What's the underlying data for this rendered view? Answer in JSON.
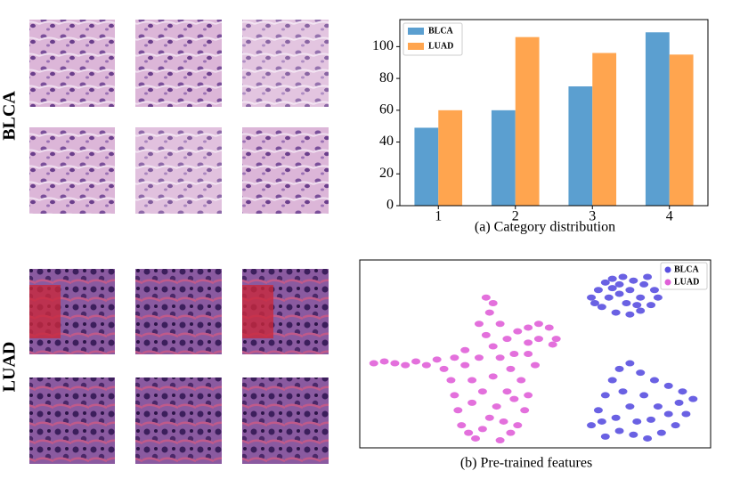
{
  "row_labels": [
    "BLCA",
    "LUAD"
  ],
  "chart_data": [
    {
      "type": "bar",
      "caption": "(a) Category distribution",
      "categories": [
        "1",
        "2",
        "3",
        "4"
      ],
      "series": [
        {
          "name": "BLCA",
          "color": "#5b9fd0",
          "values": [
            49,
            60,
            75,
            109
          ]
        },
        {
          "name": "LUAD",
          "color": "#ffa54f",
          "values": [
            60,
            106,
            96,
            95
          ]
        }
      ],
      "ylim": [
        0,
        117
      ],
      "yticks": [
        0,
        20,
        40,
        60,
        80,
        100
      ],
      "legend": "upper-left"
    },
    {
      "type": "scatter",
      "caption": "(b) Pre-trained features",
      "xlim": [
        0,
        100
      ],
      "ylim": [
        0,
        100
      ],
      "legend": "upper-right",
      "series": [
        {
          "name": "BLCA",
          "color": "#5a50e0",
          "x": [
            66,
            68,
            70,
            72,
            75,
            78,
            81,
            84,
            85,
            83,
            80,
            77,
            73,
            69,
            71,
            74,
            77,
            80,
            76,
            72,
            79,
            67,
            82,
            74,
            66,
            68,
            70,
            72,
            74,
            77,
            80,
            84,
            88,
            92,
            95,
            93,
            90,
            86,
            82,
            78,
            74,
            70,
            73,
            77,
            81,
            85,
            88,
            79,
            83,
            75,
            69,
            91
          ],
          "y": [
            80,
            84,
            88,
            90,
            91,
            89,
            87,
            84,
            80,
            76,
            73,
            71,
            72,
            75,
            80,
            82,
            84,
            80,
            77,
            85,
            76,
            77,
            91,
            87,
            12,
            20,
            28,
            36,
            42,
            45,
            40,
            36,
            33,
            30,
            26,
            18,
            12,
            8,
            5,
            7,
            9,
            6,
            16,
            22,
            28,
            22,
            18,
            14,
            15,
            30,
            14,
            24
          ]
        },
        {
          "name": "LUAD",
          "color": "#e060d8",
          "x": [
            4,
            7,
            10,
            13,
            16,
            19,
            22,
            24,
            26,
            27,
            28,
            29,
            31,
            33,
            35,
            37,
            39,
            41,
            43,
            45,
            47,
            48,
            46,
            43,
            40,
            38,
            36,
            34,
            37,
            38,
            36,
            40,
            42,
            45,
            48,
            51,
            54,
            56,
            55,
            51,
            48,
            44,
            34,
            30,
            32,
            35,
            38,
            42,
            30,
            27,
            40,
            50,
            48,
            44,
            32
          ],
          "y": [
            45,
            46,
            45,
            44,
            46,
            44,
            47,
            42,
            36,
            28,
            20,
            12,
            8,
            5,
            10,
            16,
            22,
            14,
            8,
            12,
            20,
            28,
            36,
            42,
            48,
            54,
            60,
            66,
            72,
            77,
            80,
            66,
            58,
            62,
            64,
            66,
            64,
            58,
            55,
            58,
            56,
            50,
            48,
            44,
            36,
            30,
            38,
            30,
            52,
            48,
            4,
            44,
            50,
            26,
            24
          ]
        }
      ]
    }
  ]
}
